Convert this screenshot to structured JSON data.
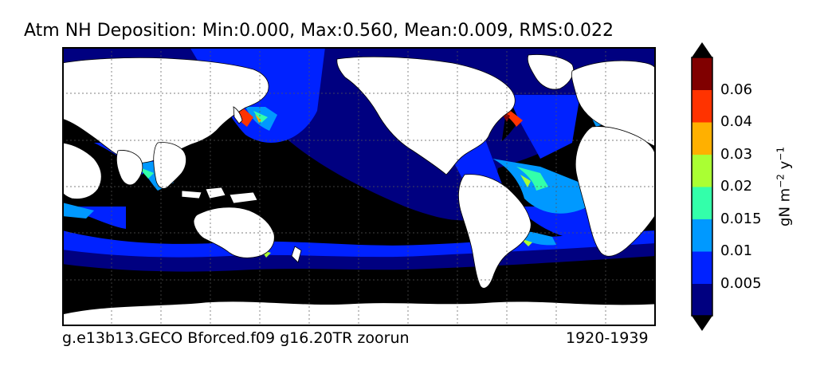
{
  "title": "Atm NH Deposition: Min:0.000, Max:0.560, Mean:0.009, RMS:0.022",
  "footer": {
    "case_name": "g.e13b13.GECO Bforced.f09 g16.20TR zoorun",
    "years": "1920-1939"
  },
  "colorbar": {
    "unit_label": "gN m",
    "unit_exp1": "−2",
    "unit_mid": " y",
    "unit_exp2": "−1",
    "ticks": [
      "0.005",
      "0.01",
      "0.015",
      "0.02",
      "0.03",
      "0.04",
      "0.06"
    ],
    "level_colors": [
      "#000080",
      "#0022ff",
      "#0099ff",
      "#33ffaa",
      "#aaff33",
      "#ffb000",
      "#ff3300",
      "#800000"
    ],
    "extend_color_low": "#000000",
    "extend_color_high": "#000000"
  },
  "map": {
    "ocean_base_color": "#000000",
    "land_color": "#ffffff",
    "gridlines": "dotted"
  }
}
